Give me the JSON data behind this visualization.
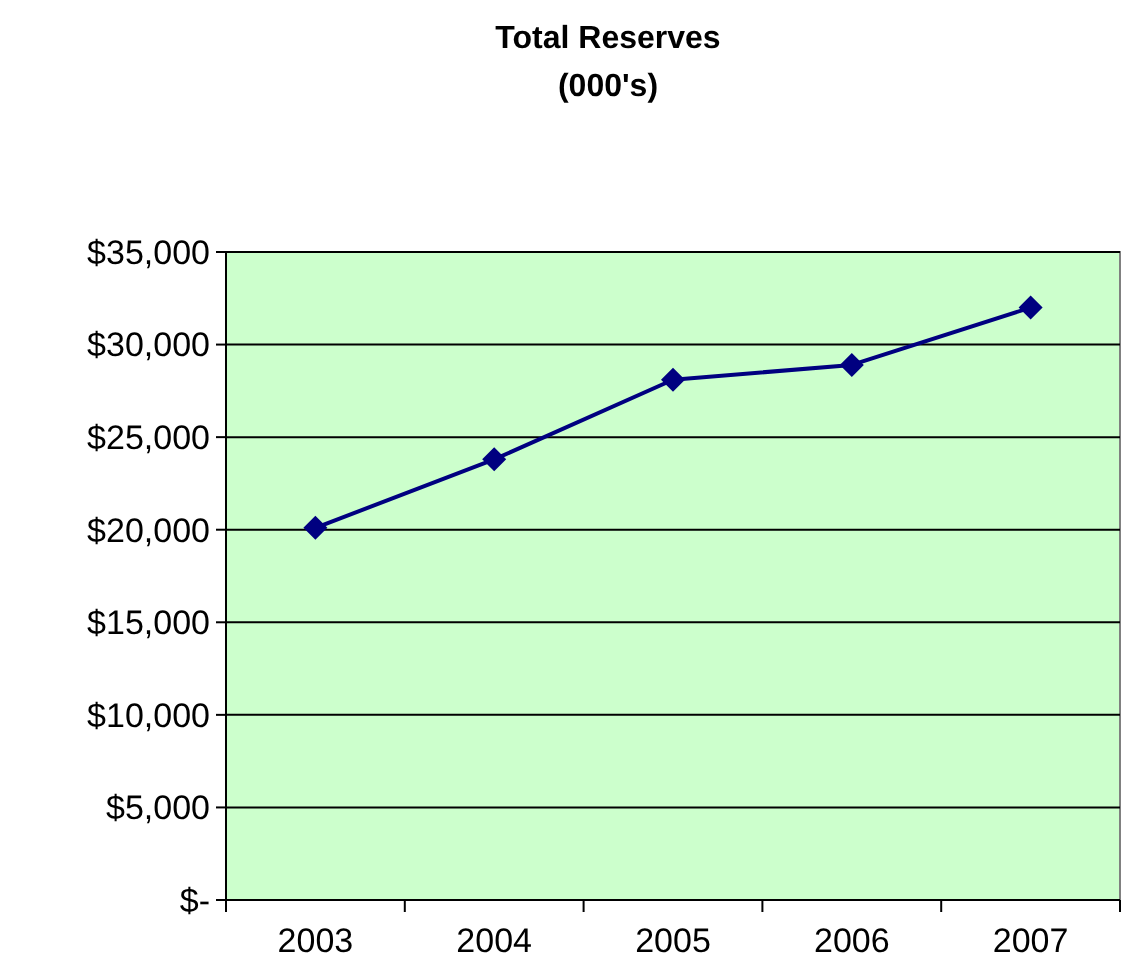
{
  "chart_data": {
    "type": "line",
    "title": "Total Reserves",
    "subtitle": "(000's)",
    "categories": [
      "2003",
      "2004",
      "2005",
      "2006",
      "2007"
    ],
    "series": [
      {
        "color": "#000080",
        "values": [
          20100,
          23800,
          28100,
          28900,
          32000
        ]
      }
    ],
    "ylim": [
      0,
      35000
    ],
    "yticks": [
      {
        "value": 0,
        "label": "$-"
      },
      {
        "value": 5000,
        "label": "$5,000"
      },
      {
        "value": 10000,
        "label": "$10,000"
      },
      {
        "value": 15000,
        "label": "$15,000"
      },
      {
        "value": 20000,
        "label": "$20,000"
      },
      {
        "value": 25000,
        "label": "$25,000"
      },
      {
        "value": 30000,
        "label": "$30,000"
      },
      {
        "value": 35000,
        "label": "$35,000"
      }
    ],
    "grid": "y",
    "marker": "diamond",
    "line_style": "solid"
  }
}
